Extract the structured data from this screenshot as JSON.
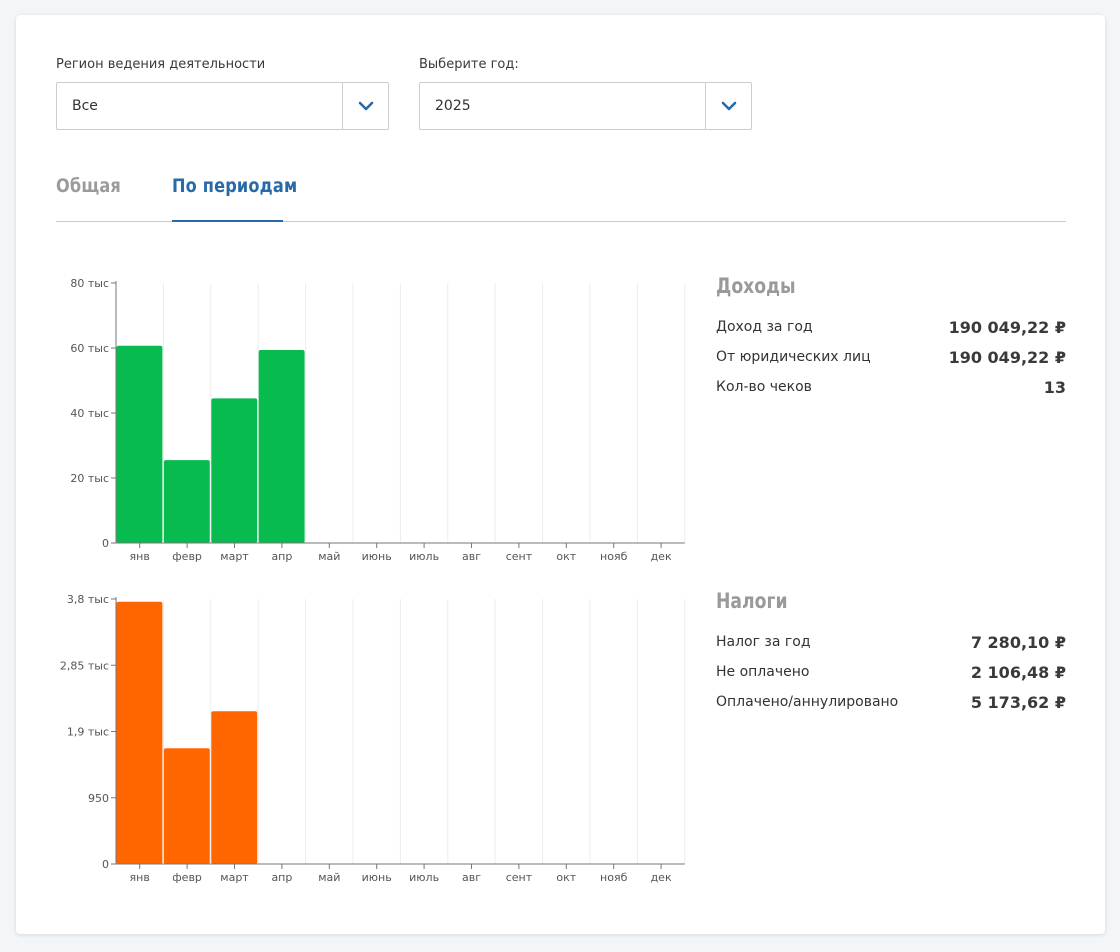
{
  "filters": {
    "region": {
      "label": "Регион ведения деятельности",
      "value": "Все"
    },
    "year": {
      "label": "Выберите год:",
      "value": "2025"
    }
  },
  "tabs": [
    {
      "label": "Общая",
      "active": false
    },
    {
      "label": "По периодам",
      "active": true
    }
  ],
  "income": {
    "title": "Доходы",
    "rows": [
      {
        "label": "Доход за год",
        "value": "190 049,22 ₽"
      },
      {
        "label": "От юридических лиц",
        "value": "190 049,22 ₽"
      },
      {
        "label": "Кол-во чеков",
        "value": "13"
      }
    ]
  },
  "taxes": {
    "title": "Налоги",
    "rows": [
      {
        "label": "Налог за год",
        "value": "7 280,10 ₽"
      },
      {
        "label": "Не оплачено",
        "value": "2 106,48 ₽"
      },
      {
        "label": "Оплачено/аннулировано",
        "value": "5 173,62 ₽"
      }
    ]
  },
  "colors": {
    "accent": "#2869a8",
    "income_bar": "#08bb4e",
    "tax_bar": "#ff6600"
  },
  "chart_data": [
    {
      "type": "bar",
      "categories": [
        "янв",
        "февр",
        "март",
        "апр",
        "май",
        "июнь",
        "июль",
        "авг",
        "сент",
        "окт",
        "нояб",
        "дек"
      ],
      "values": [
        60700,
        25500,
        44500,
        59400,
        0,
        0,
        0,
        0,
        0,
        0,
        0,
        0
      ],
      "yticks": [
        0,
        20000,
        40000,
        60000,
        80000
      ],
      "ytick_labels": [
        "0",
        "20 тыс",
        "40 тыс",
        "60 тыс",
        "80 тыс"
      ],
      "ylim": [
        0,
        80000
      ],
      "color": "#08bb4e",
      "grid": "vertical"
    },
    {
      "type": "bar",
      "categories": [
        "янв",
        "февр",
        "март",
        "апр",
        "май",
        "июнь",
        "июль",
        "авг",
        "сент",
        "окт",
        "нояб",
        "дек"
      ],
      "values": [
        3760,
        1660,
        2190,
        0,
        0,
        0,
        0,
        0,
        0,
        0,
        0,
        0
      ],
      "yticks": [
        0,
        950,
        1900,
        2850,
        3800
      ],
      "ytick_labels": [
        "0",
        "950",
        "1,9 тыс",
        "2,85 тыс",
        "3,8 тыс"
      ],
      "ylim": [
        0,
        3800
      ],
      "color": "#ff6600",
      "grid": "vertical"
    }
  ]
}
